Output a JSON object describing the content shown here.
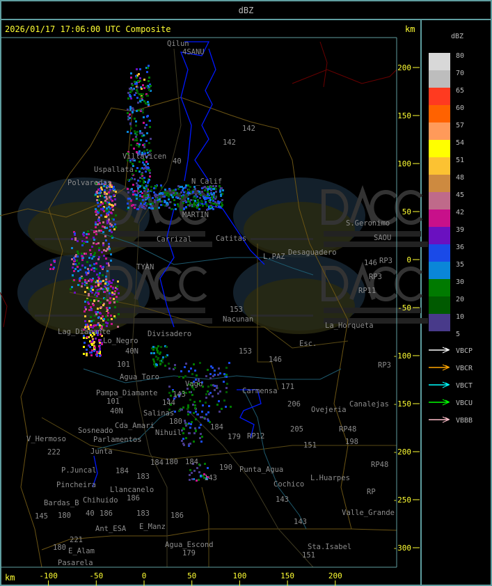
{
  "top_bar": {
    "title": "dBZ"
  },
  "map": {
    "header": "2026/01/17 17:06:00 UTC Composite",
    "unit_top": "km",
    "unit_bottom": "km",
    "x_ticks_km": [
      -100,
      -50,
      0,
      50,
      100,
      150,
      200
    ],
    "y_ticks_km": [
      200,
      150,
      100,
      50,
      0,
      -50,
      -100,
      -150,
      -200,
      -250,
      -300
    ],
    "axis_color": "#ffff33",
    "watermark": {
      "logo": "DACC",
      "line1": "Dirección de Agricultura",
      "line2": "y Contingencias Climáticas",
      "url": "http://www.contingencias.mendoza.gov.ar"
    },
    "places": [
      "Qilun",
      "4SANU",
      "Villavicen",
      "Uspallata",
      "Polvaredas",
      "N_Calif",
      "40",
      "142",
      "142",
      "MARTIN",
      "Carrizal",
      "Catitas",
      "TYAN",
      "L.PAZ",
      "Desaguadero",
      "S.Geronimo",
      "SAOU",
      "146",
      "RP3",
      "RP3",
      "RP11",
      "153",
      "Nacunan",
      "La_Horqueta",
      "Esc.",
      "153",
      "146",
      "RP3",
      "Lag_Diamante",
      "Lo_Negro",
      "40N",
      "Divisadero",
      "101",
      "Agua_Toro",
      "Pampa_Diamante",
      "101",
      "40N",
      "Salinas",
      "180",
      "Cda_Amari",
      "Parlamentos",
      "Sosneado",
      "Nihuil",
      "V_Hermoso",
      "222",
      "Junta",
      "180",
      "184",
      "184",
      "P.Juncal",
      "Pincheira",
      "184",
      "183",
      "Llancanelo",
      "Chihuido",
      "186",
      "186",
      "40",
      "Ant_ESA",
      "183",
      "145",
      "Bardas_B",
      "180",
      "186",
      "E_Manz",
      "221",
      "E_Alam",
      "Pasarela",
      "180",
      "Agua_Escond",
      "179",
      "184",
      "179",
      "190",
      "Punta_Agua",
      "143",
      "Cochico",
      "143",
      "143",
      "Sta.Isabel",
      "151",
      "151",
      "L.Huarpes",
      "205",
      "206",
      "Ovejeria",
      "171",
      "Carmensa",
      "RP12",
      "Canalejas",
      "198",
      "RP48",
      "RP48",
      "RP",
      "Valle_Grande",
      "144",
      "143",
      "Vago"
    ]
  },
  "legend": {
    "title": "dBZ",
    "scale": [
      {
        "label": "80",
        "color": "#d8d8d8"
      },
      {
        "label": "70",
        "color": "#bdbdbd"
      },
      {
        "label": "65",
        "color": "#ff3a20"
      },
      {
        "label": "60",
        "color": "#ff6200"
      },
      {
        "label": "57",
        "color": "#ff9a5a"
      },
      {
        "label": "54",
        "color": "#ffff00"
      },
      {
        "label": "51",
        "color": "#fcc232"
      },
      {
        "label": "48",
        "color": "#cd8a40"
      },
      {
        "label": "45",
        "color": "#bf6a8a"
      },
      {
        "label": "42",
        "color": "#c8108a"
      },
      {
        "label": "39",
        "color": "#6a10c0"
      },
      {
        "label": "36",
        "color": "#1a4ae8"
      },
      {
        "label": "35",
        "color": "#0a86d8"
      },
      {
        "label": "30",
        "color": "#007a00"
      },
      {
        "label": "20",
        "color": "#005a00"
      },
      {
        "label": "10",
        "color": "#483a8a"
      }
    ],
    "bottom_label": "5",
    "radars": [
      {
        "name": "VBCP",
        "color": "#ffffff"
      },
      {
        "name": "VBCR",
        "color": "#ffa500"
      },
      {
        "name": "VBCT",
        "color": "#00ffff"
      },
      {
        "name": "VBCU",
        "color": "#00ff00"
      },
      {
        "name": "VBBB",
        "color": "#ffc0cb"
      }
    ]
  }
}
